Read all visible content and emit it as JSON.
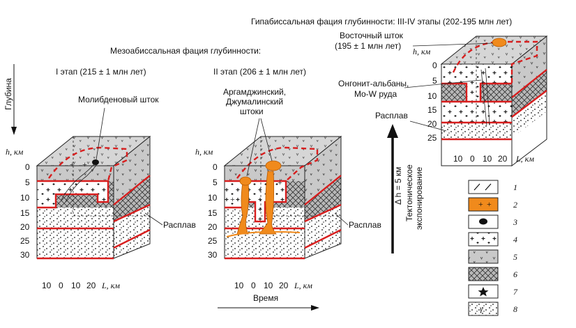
{
  "titles": {
    "meso": "Мезоабиссальная фация глубинности:",
    "hypo": "Гипабиссальная фация глубинности: III-IV этапы (202-195 млн лет)",
    "stage1": "I этап (215 ± 1 млн лет)",
    "stage2": "II этап (206 ± 1 млн лет)"
  },
  "axes": {
    "depth_label": "Глубина",
    "time_label": "Время",
    "h_label": "h, км",
    "l_label": "L, км",
    "depth_ticks_main": [
      "0",
      "5",
      "10",
      "15",
      "20",
      "25",
      "30"
    ],
    "depth_ticks_right": [
      "0",
      "5",
      "10",
      "15",
      "20",
      "25"
    ],
    "l_ticks": [
      "10",
      "0",
      "10",
      "20"
    ]
  },
  "labels": {
    "moly_stock": "Молибденовый шток",
    "argam_line1": "Аргамджинский,",
    "argam_line2": "Джумалинский",
    "argam_line3": "штоки",
    "east_line1": "Восточный шток",
    "east_line2": "(195 ± 1 млн лет)",
    "ongon_line1": "Онгонит-альбаны,",
    "ongon_line2": "Mo-W руда",
    "melt": "Расплав",
    "dh": "Δ h = 5 км",
    "tect_line1": "Тектоническое",
    "tect_line2": "экспонирование"
  },
  "legend": [
    {
      "num": "1",
      "icon": "dyke-lines-icon"
    },
    {
      "num": "2",
      "icon": "orange-stock-icon"
    },
    {
      "num": "3",
      "icon": "black-dot-icon"
    },
    {
      "num": "4",
      "icon": "plus-pattern-icon"
    },
    {
      "num": "5",
      "icon": "gray-v-pattern-icon"
    },
    {
      "num": "6",
      "icon": "crosshatch-icon"
    },
    {
      "num": "7",
      "icon": "star-icon"
    },
    {
      "num": "8",
      "icon": "dotted-gamma-icon"
    }
  ],
  "colors": {
    "boundary_red": "#d81e1e",
    "stock_orange": "#f08a1c",
    "host_gray": "#c9c9c9"
  }
}
